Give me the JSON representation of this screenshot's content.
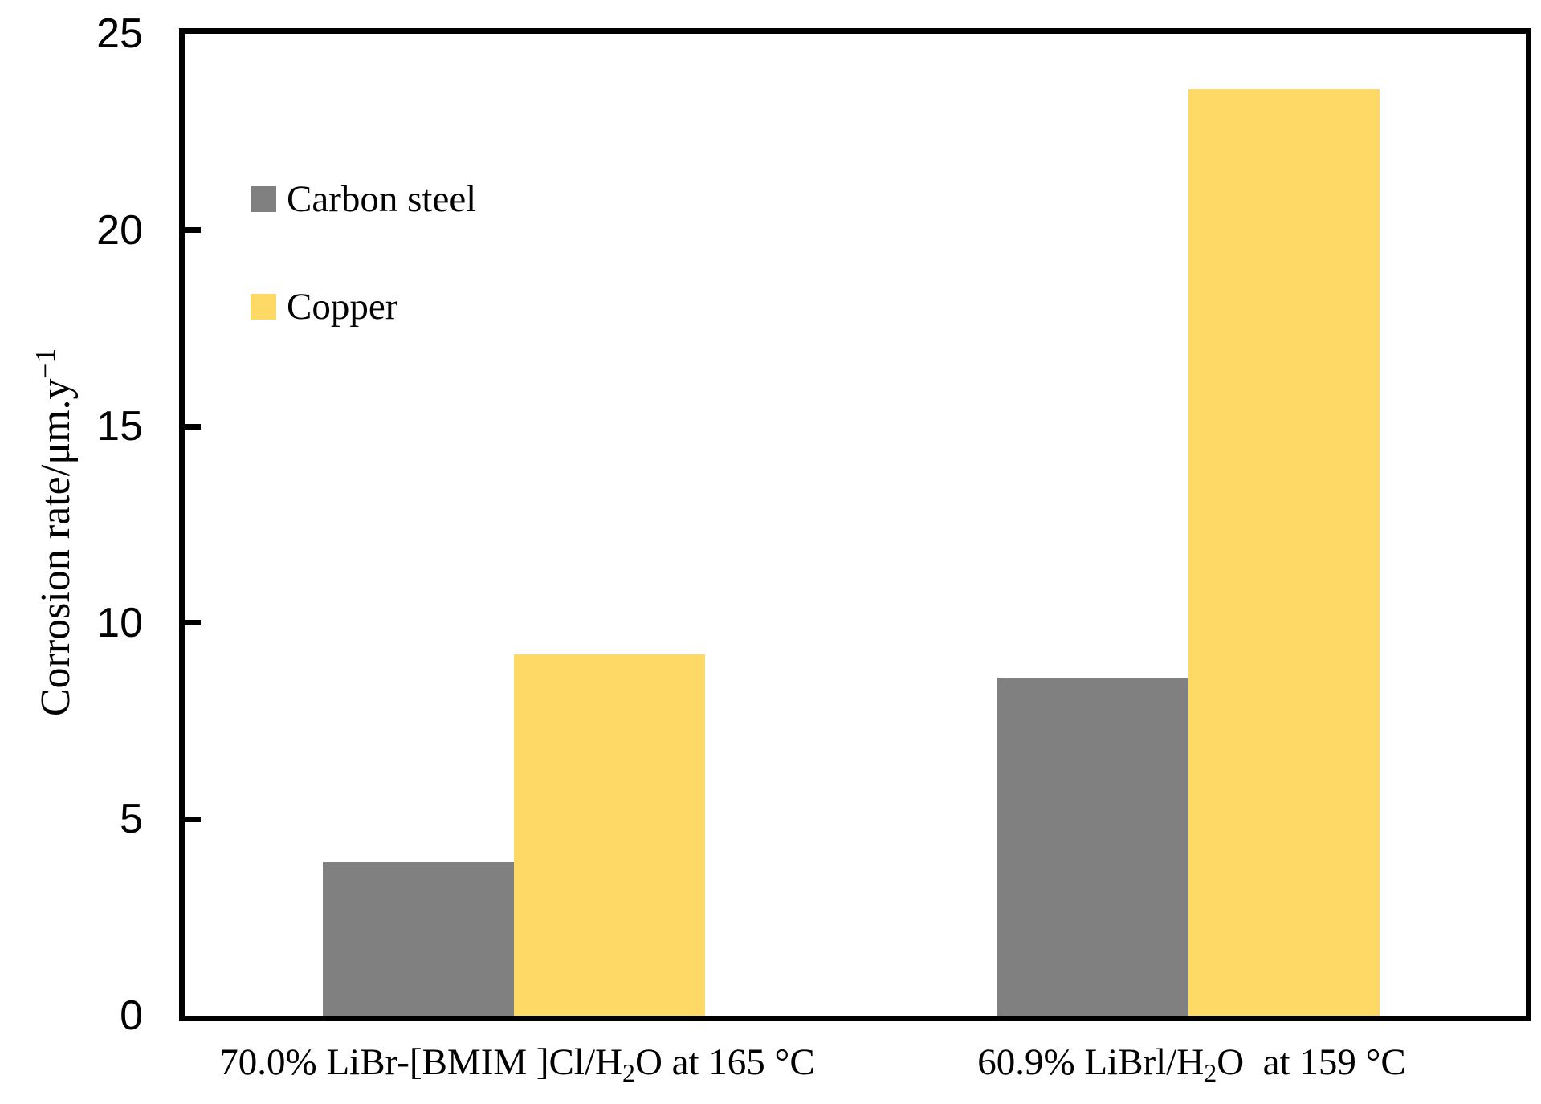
{
  "chart_data": {
    "type": "bar",
    "title": "",
    "categories": [
      "70.0% LiBr-[BMIM ]Cl/H₂O at 165 °C",
      "60.9% LiBrl/H₂O  at 159 °C"
    ],
    "categories_rich": [
      [
        {
          "t": "70.0% LiBr-[BMIM ]Cl/H"
        },
        {
          "t": "2",
          "sub": true
        },
        {
          "t": "O at 165 °C"
        }
      ],
      [
        {
          "t": "60.9% LiBrl/H"
        },
        {
          "t": "2",
          "sub": true
        },
        {
          "t": "O  at 159 °C"
        }
      ]
    ],
    "series": [
      {
        "name": "Carbon steel",
        "color": "#808080",
        "values": [
          3.9,
          8.6
        ]
      },
      {
        "name": "Copper",
        "color": "#FFD966",
        "values": [
          9.2,
          23.6
        ]
      }
    ],
    "xlabel": "",
    "ylabel": "Corrosion rate/μm.y⁻¹",
    "ylabel_rich": [
      {
        "t": "Corrosion rate/μm.y"
      },
      {
        "t": "−1",
        "sup": true
      }
    ],
    "ylim": [
      0,
      25
    ],
    "yticks": [
      0,
      5,
      10,
      15,
      20,
      25
    ],
    "grid": false,
    "legend_position": "inside-top-left",
    "axis_color": "#000000",
    "background_color": "#FFFFFF"
  }
}
